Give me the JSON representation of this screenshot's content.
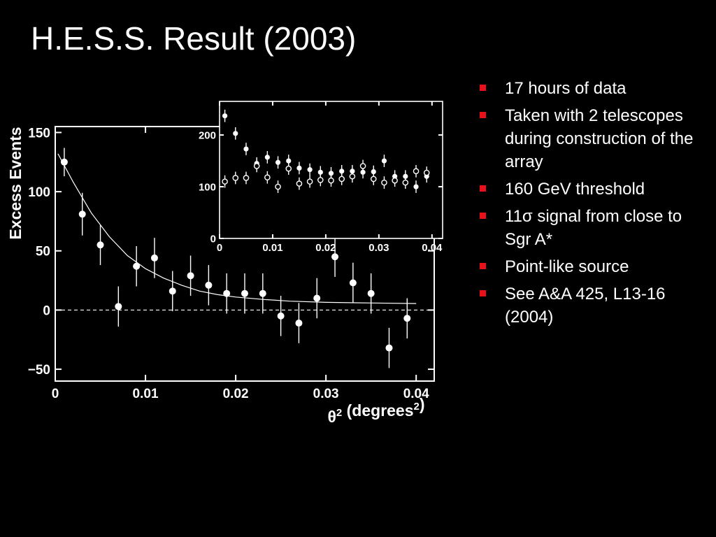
{
  "slide": {
    "title": "H.E.S.S. Result (2003)",
    "bullets": [
      "17 hours of data",
      "Taken with 2 telescopes during construction of the array",
      "160 GeV threshold",
      "11σ signal from close to Sgr A*",
      "Point-like source",
      "See A&A 425, L13-16 (2004)"
    ],
    "bullet_marker_color": "#e8101a"
  },
  "chart_data": [
    {
      "type": "scatter",
      "xlabel": "θ2 (degrees2)",
      "ylabel": "Excess Events",
      "xlim": [
        0,
        0.042
      ],
      "ylim": [
        -60,
        155
      ],
      "xticks": [
        0,
        0.01,
        0.02,
        0.03,
        0.04
      ],
      "xtick_labels": [
        "0",
        "0.01",
        "0.02",
        "0.03",
        "0.04"
      ],
      "yticks": [
        -50,
        0,
        50,
        100,
        150
      ],
      "ytick_labels": [
        "−50",
        "0",
        "50",
        "100",
        "150"
      ],
      "zero_line": "dashed",
      "series": [
        {
          "marker": "filled-circle",
          "points": [
            {
              "x": 0.001,
              "y": 125,
              "err": 12
            },
            {
              "x": 0.003,
              "y": 81,
              "err": 18
            },
            {
              "x": 0.005,
              "y": 55,
              "err": 17
            },
            {
              "x": 0.007,
              "y": 3,
              "err": 17
            },
            {
              "x": 0.009,
              "y": 37,
              "err": 17
            },
            {
              "x": 0.011,
              "y": 44,
              "err": 17
            },
            {
              "x": 0.013,
              "y": 16,
              "err": 17
            },
            {
              "x": 0.015,
              "y": 29,
              "err": 17
            },
            {
              "x": 0.017,
              "y": 21,
              "err": 17
            },
            {
              "x": 0.019,
              "y": 14,
              "err": 17
            },
            {
              "x": 0.021,
              "y": 14,
              "err": 17
            },
            {
              "x": 0.023,
              "y": 14,
              "err": 17
            },
            {
              "x": 0.025,
              "y": -5,
              "err": 17
            },
            {
              "x": 0.027,
              "y": -11,
              "err": 17
            },
            {
              "x": 0.029,
              "y": 10,
              "err": 17
            },
            {
              "x": 0.031,
              "y": 45,
              "err": 17
            },
            {
              "x": 0.033,
              "y": 23,
              "err": 17
            },
            {
              "x": 0.035,
              "y": 14,
              "err": 17
            },
            {
              "x": 0.037,
              "y": -32,
              "err": 17
            },
            {
              "x": 0.039,
              "y": -7,
              "err": 17
            }
          ]
        },
        {
          "marker": "fit-curve",
          "points": [
            {
              "x": 0.0003,
              "y": 132
            },
            {
              "x": 0.002,
              "y": 108
            },
            {
              "x": 0.004,
              "y": 82
            },
            {
              "x": 0.006,
              "y": 62
            },
            {
              "x": 0.008,
              "y": 46
            },
            {
              "x": 0.01,
              "y": 35
            },
            {
              "x": 0.012,
              "y": 27
            },
            {
              "x": 0.014,
              "y": 21
            },
            {
              "x": 0.016,
              "y": 16
            },
            {
              "x": 0.018,
              "y": 13
            },
            {
              "x": 0.02,
              "y": 11
            },
            {
              "x": 0.023,
              "y": 9
            },
            {
              "x": 0.026,
              "y": 7.5
            },
            {
              "x": 0.03,
              "y": 6.5
            },
            {
              "x": 0.035,
              "y": 6
            },
            {
              "x": 0.04,
              "y": 5.5
            }
          ]
        }
      ]
    },
    {
      "type": "scatter",
      "panel": "inset",
      "xlim": [
        0,
        0.042
      ],
      "ylim": [
        0,
        265
      ],
      "xticks": [
        0,
        0.01,
        0.02,
        0.03,
        0.04
      ],
      "xtick_labels": [
        "0",
        "0.01",
        "0.02",
        "0.03",
        "0.04"
      ],
      "yticks": [
        0,
        100,
        200
      ],
      "ytick_labels": [
        "0",
        "100",
        "200"
      ],
      "series": [
        {
          "marker": "filled-circle",
          "points": [
            {
              "x": 0.001,
              "y": 237,
              "err": 12
            },
            {
              "x": 0.003,
              "y": 203,
              "err": 12
            },
            {
              "x": 0.005,
              "y": 173,
              "err": 12
            },
            {
              "x": 0.007,
              "y": 145,
              "err": 12
            },
            {
              "x": 0.009,
              "y": 157,
              "err": 12
            },
            {
              "x": 0.011,
              "y": 147,
              "err": 12
            },
            {
              "x": 0.013,
              "y": 150,
              "err": 12
            },
            {
              "x": 0.015,
              "y": 136,
              "err": 12
            },
            {
              "x": 0.017,
              "y": 133,
              "err": 12
            },
            {
              "x": 0.019,
              "y": 128,
              "err": 12
            },
            {
              "x": 0.021,
              "y": 126,
              "err": 12
            },
            {
              "x": 0.023,
              "y": 130,
              "err": 12
            },
            {
              "x": 0.025,
              "y": 130,
              "err": 12
            },
            {
              "x": 0.027,
              "y": 128,
              "err": 12
            },
            {
              "x": 0.029,
              "y": 129,
              "err": 12
            },
            {
              "x": 0.031,
              "y": 150,
              "err": 12
            },
            {
              "x": 0.033,
              "y": 120,
              "err": 12
            },
            {
              "x": 0.035,
              "y": 120,
              "err": 12
            },
            {
              "x": 0.037,
              "y": 100,
              "err": 12
            },
            {
              "x": 0.039,
              "y": 120,
              "err": 12
            }
          ]
        },
        {
          "marker": "open-circle",
          "points": [
            {
              "x": 0.001,
              "y": 110,
              "err": 12
            },
            {
              "x": 0.003,
              "y": 117,
              "err": 12
            },
            {
              "x": 0.005,
              "y": 117,
              "err": 12
            },
            {
              "x": 0.007,
              "y": 140,
              "err": 12
            },
            {
              "x": 0.009,
              "y": 118,
              "err": 12
            },
            {
              "x": 0.011,
              "y": 100,
              "err": 12
            },
            {
              "x": 0.013,
              "y": 135,
              "err": 12
            },
            {
              "x": 0.015,
              "y": 106,
              "err": 12
            },
            {
              "x": 0.017,
              "y": 110,
              "err": 12
            },
            {
              "x": 0.019,
              "y": 113,
              "err": 12
            },
            {
              "x": 0.021,
              "y": 112,
              "err": 12
            },
            {
              "x": 0.023,
              "y": 115,
              "err": 12
            },
            {
              "x": 0.025,
              "y": 120,
              "err": 12
            },
            {
              "x": 0.027,
              "y": 140,
              "err": 12
            },
            {
              "x": 0.029,
              "y": 115,
              "err": 12
            },
            {
              "x": 0.031,
              "y": 108,
              "err": 12
            },
            {
              "x": 0.033,
              "y": 112,
              "err": 12
            },
            {
              "x": 0.035,
              "y": 108,
              "err": 12
            },
            {
              "x": 0.037,
              "y": 130,
              "err": 12
            },
            {
              "x": 0.039,
              "y": 127,
              "err": 12
            }
          ]
        }
      ]
    }
  ]
}
